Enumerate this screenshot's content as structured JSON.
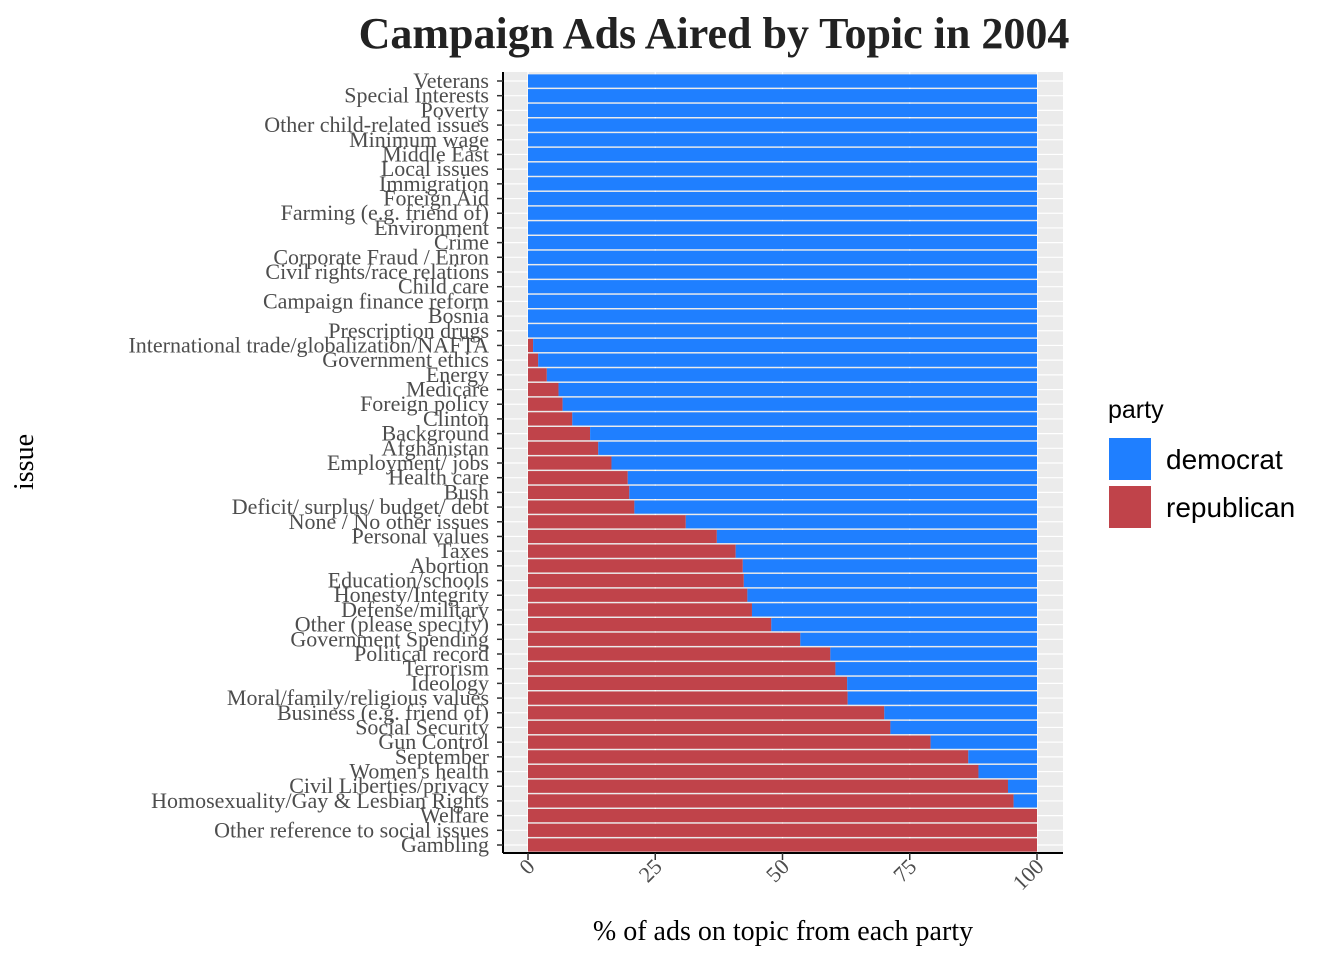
{
  "chart_data": {
    "type": "bar",
    "orientation": "horizontal",
    "stacked": true,
    "title": "Campaign Ads Aired by Topic in 2004",
    "xlabel": "% of ads on topic from each party",
    "ylabel": "issue",
    "xlim": [
      0,
      100
    ],
    "x_ticks": [
      0,
      25,
      50,
      75,
      100
    ],
    "grid": true,
    "legend_position": "right",
    "legend_title": "party",
    "categories": [
      "Veterans",
      "Special Interests",
      "Poverty",
      "Other child-related issues",
      "Minimum wage",
      "Middle East",
      "Local issues",
      "Immigration",
      "Foreign Aid",
      "Farming (e.g. friend of)",
      "Environment",
      "Crime",
      "Corporate Fraud / Enron",
      "Civil rights/race relations",
      "Child care",
      "Campaign finance reform",
      "Bosnia",
      "Prescription drugs",
      "International trade/globalization/NAFTA",
      "Government ethics",
      "Energy",
      "Medicare",
      "Foreign policy",
      "Clinton",
      "Background",
      "Afghanistan",
      "Employment/ jobs",
      "Health care",
      "Bush",
      "Deficit/ surplus/ budget/ debt",
      "None / No other issues",
      "Personal values",
      "Taxes",
      "Abortion",
      "Education/schools",
      "Honesty/Integrity",
      "Defense/military",
      "Other (please specify)",
      "Government Spending",
      "Political record",
      "Terrorism",
      "Ideology",
      "Moral/family/religious values",
      "Business (e.g. friend of)",
      "Social Security",
      "Gun Control",
      "September",
      "Women's health",
      "Civil Liberties/privacy",
      "Homosexuality/Gay & Lesbian Rights",
      "Welfare",
      "Other reference to social issues",
      "Gambling"
    ],
    "series": [
      {
        "name": "democrat",
        "color": "#1F7FFF",
        "values": [
          100,
          100,
          100,
          100,
          100,
          100,
          100,
          100,
          100,
          100,
          100,
          100,
          100,
          100,
          100,
          100,
          100,
          100,
          99,
          98,
          96.3,
          94,
          93.2,
          91.3,
          87.8,
          86.2,
          83.6,
          80.4,
          80.1,
          79.1,
          69,
          62.9,
          59.2,
          57.8,
          57.6,
          56.9,
          56,
          52.2,
          46.5,
          40.6,
          39.6,
          37.3,
          37.2,
          30,
          28.8,
          20.9,
          13.5,
          11.5,
          5.7,
          4.6,
          0,
          0,
          0
        ]
      },
      {
        "name": "republican",
        "color": "#C0434A",
        "values": [
          0,
          0,
          0,
          0,
          0,
          0,
          0,
          0,
          0,
          0,
          0,
          0,
          0,
          0,
          0,
          0,
          0,
          0,
          1,
          2,
          3.7,
          6,
          6.8,
          8.7,
          12.2,
          13.8,
          16.4,
          19.6,
          19.9,
          20.9,
          31,
          37.1,
          40.8,
          42.2,
          42.4,
          43.1,
          44,
          47.8,
          53.5,
          59.4,
          60.4,
          62.7,
          62.8,
          70,
          71.2,
          79.1,
          86.5,
          88.5,
          94.3,
          95.4,
          100,
          100,
          100
        ]
      }
    ]
  }
}
